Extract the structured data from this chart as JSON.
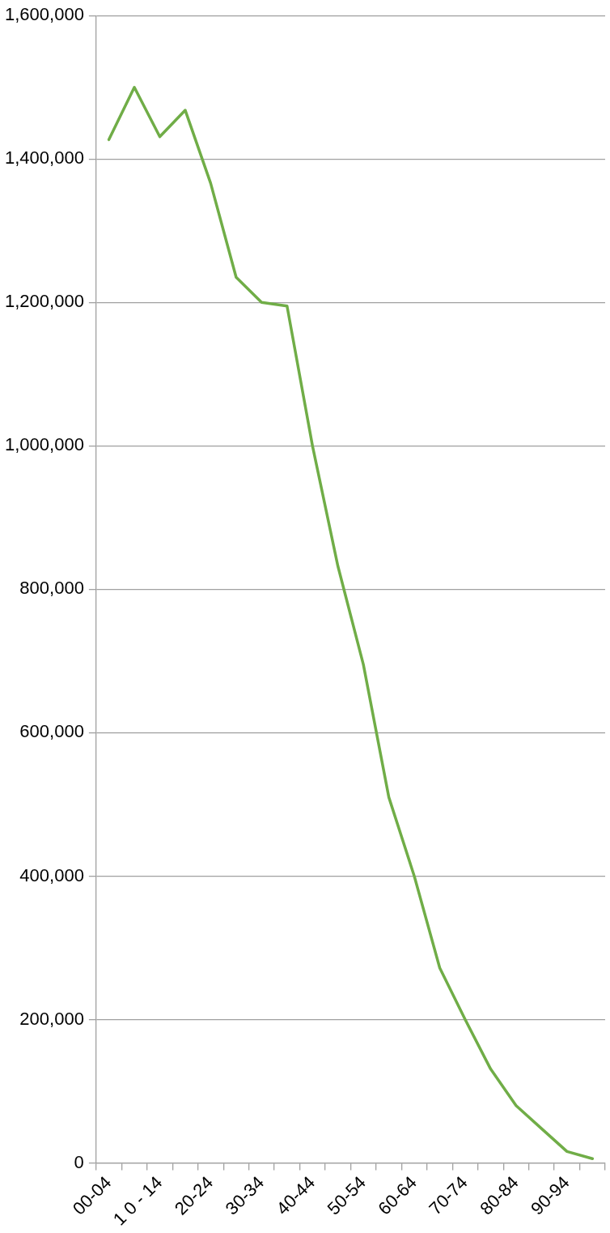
{
  "chart_data": {
    "type": "line",
    "categories": [
      "00-04",
      null,
      "1 0 - 14",
      null,
      "20-24",
      null,
      "30-34",
      null,
      "40-44",
      null,
      "50-54",
      null,
      "60-64",
      null,
      "70-74",
      null,
      "80-84",
      null,
      "90-94",
      null
    ],
    "series": [
      {
        "color": "#70ad47",
        "values": [
          1427000,
          1500000,
          1431000,
          1468000,
          1366000,
          1235000,
          1200000,
          1195000,
          1000000,
          832000,
          695000,
          510000,
          400000,
          272000,
          200000,
          131000,
          80000,
          48000,
          16000,
          6000
        ]
      }
    ],
    "ylim": [
      0,
      1600000
    ],
    "yticks": [
      0,
      {
        "value": 200000,
        "label": "200,000"
      },
      {
        "value": 400000,
        "label": "400,000"
      },
      {
        "value": 600000,
        "label": "600,000"
      },
      {
        "value": 800000,
        "label": "800,000"
      },
      {
        "value": 1000000,
        "label": "1,000,000"
      },
      {
        "value": 1200000,
        "label": "1,200,000"
      },
      {
        "value": 1400000,
        "label": "1,400,000"
      },
      {
        "value": 1600000,
        "label": "1,600,000"
      }
    ],
    "grid": "y",
    "legend": false,
    "marker": "none",
    "line_style": "solid"
  }
}
